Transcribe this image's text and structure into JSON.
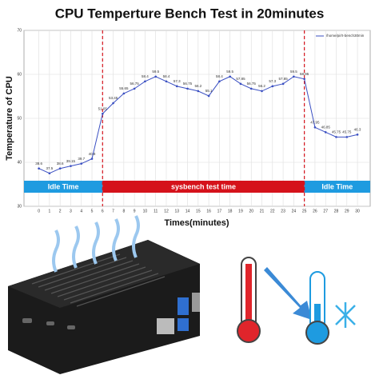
{
  "chart_data": {
    "type": "line",
    "title": "CPU Temperture Bench Test in 20minutes",
    "y_label": "Temperature of CPU",
    "x_label": "Times(minutes)",
    "x": [
      0,
      1,
      2,
      3,
      4,
      5,
      6,
      7,
      8,
      9,
      10,
      11,
      12,
      13,
      14,
      15,
      16,
      17,
      18,
      19,
      20,
      21,
      22,
      23,
      24,
      25,
      26,
      27,
      28,
      29,
      30
    ],
    "series": [
      {
        "name": "/home/pi/rt-bench30min",
        "color": "#3a4fc2",
        "values": [
          38.6,
          37.5,
          38.6,
          39.15,
          39.7,
          40.8,
          51.05,
          53.45,
          55.65,
          56.75,
          58.4,
          59.5,
          58.4,
          57.3,
          56.75,
          56.2,
          55.1,
          58.4,
          59.5,
          57.85,
          56.75,
          56.2,
          57.3,
          57.85,
          59.5,
          58.95,
          47.95,
          46.85,
          45.75,
          45.75,
          46.3
        ]
      }
    ],
    "xlim": [
      -1.4,
      31.2
    ],
    "xticks": [
      0,
      1,
      2,
      3,
      4,
      5,
      6,
      7,
      8,
      9,
      10,
      11,
      12,
      13,
      14,
      15,
      16,
      17,
      18,
      19,
      20,
      21,
      22,
      23,
      24,
      25,
      26,
      27,
      28,
      29,
      30
    ],
    "ylim": [
      30,
      70
    ],
    "yticks": [
      30,
      40,
      50,
      60,
      70
    ],
    "grid": true,
    "legend": "upper right",
    "phase_dividers": [
      6,
      25
    ],
    "phases": [
      {
        "label": "Idle Time",
        "color": "#1e9be0"
      },
      {
        "label": "sysbench test time",
        "color": "#d5121b"
      },
      {
        "label": "Idle Time",
        "color": "#1e9be0"
      }
    ]
  }
}
